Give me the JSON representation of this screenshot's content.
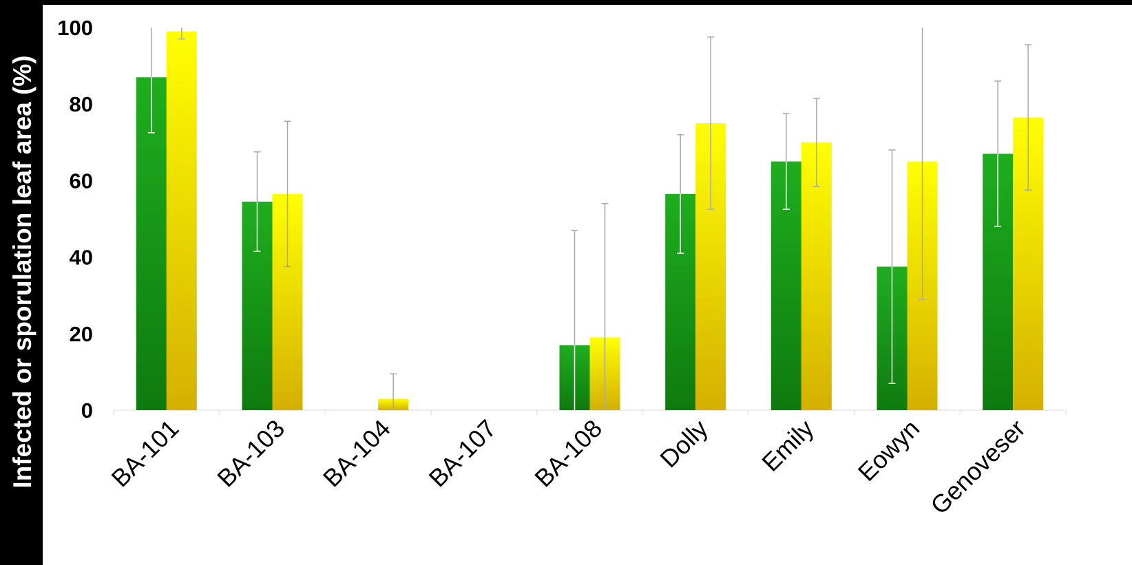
{
  "chart_data": {
    "type": "bar",
    "title": "",
    "xlabel": "",
    "ylabel": "Infected or sporulation leaf area (%)",
    "ylim": [
      0,
      100
    ],
    "yticks": [
      0,
      20,
      40,
      60,
      80,
      100
    ],
    "grid": false,
    "legend": "none",
    "categories": [
      "BA-101",
      "BA-103",
      "BA-104",
      "BA-107",
      "BA-108",
      "Dolly",
      "Emily",
      "Eowyn",
      "Genoveser"
    ],
    "series": [
      {
        "color_top": "#1fae1f",
        "color_bottom": "#0e7a0e",
        "values": [
          87,
          54.5,
          0,
          0,
          17,
          56.5,
          65,
          37.5,
          67
        ],
        "error": [
          14.5,
          13,
          0,
          0,
          30,
          15.5,
          12.5,
          30.5,
          19
        ]
      },
      {
        "color_top": "#ffff00",
        "color_bottom": "#d4b000",
        "values": [
          99,
          56.5,
          3,
          0,
          19,
          75,
          70,
          65,
          76.5
        ],
        "error": [
          2,
          19,
          6.5,
          0,
          35,
          22.5,
          11.5,
          36,
          19
        ]
      }
    ],
    "colors": {
      "frame": "#000000",
      "error_bar": "#a8a8a8",
      "axis_line": "#e6e6e6"
    }
  }
}
